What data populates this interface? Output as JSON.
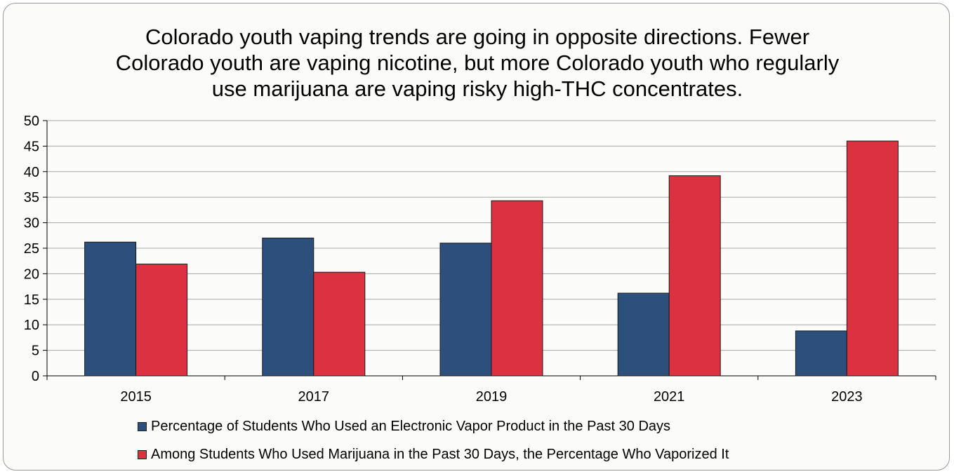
{
  "chart_data": {
    "type": "bar",
    "title": "Colorado youth vaping trends are going in opposite directions. Fewer Colorado youth are vaping nicotine, but more Colorado youth who regularly use marijuana are vaping risky high-THC concentrates.",
    "categories": [
      "2015",
      "2017",
      "2019",
      "2021",
      "2023"
    ],
    "series": [
      {
        "name": "Percentage of Students Who Used an Electronic Vapor Product in the Past 30 Days",
        "values": [
          26.2,
          27.0,
          26.0,
          16.2,
          8.8
        ],
        "color": "#2c4f7c"
      },
      {
        "name": "Among Students Who Used Marijuana in the Past 30 Days, the Percentage Who Vaporized It",
        "values": [
          21.9,
          20.3,
          34.3,
          39.2,
          46.0
        ],
        "color": "#dc3141"
      }
    ],
    "ylim": [
      0,
      50
    ],
    "yticks": [
      0,
      5,
      10,
      15,
      20,
      25,
      30,
      35,
      40,
      45,
      50
    ],
    "grid": true,
    "legend": "bottom"
  }
}
